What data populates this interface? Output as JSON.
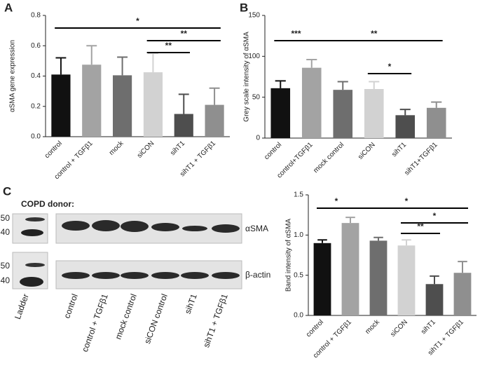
{
  "chart_data": [
    {
      "type": "bar",
      "panel": "A",
      "ylabel": "αSMA gene expression",
      "categories": [
        "control",
        "control + TGFβ1",
        "mock",
        "siCON",
        "sihT1",
        "sihT1 + TGFβ1"
      ],
      "values": [
        0.41,
        0.475,
        0.405,
        0.425,
        0.15,
        0.21
      ],
      "errors": [
        0.11,
        0.125,
        0.12,
        0.125,
        0.13,
        0.11
      ],
      "colors": [
        "#111111",
        "#a3a3a3",
        "#6e6e6e",
        "#d2d2d2",
        "#4e4e4e",
        "#8f8f8f"
      ],
      "ylim": [
        0,
        0.8
      ],
      "yticks": [
        {
          "value": 0,
          "label": "0.0"
        },
        0.2,
        0.4,
        0.6,
        0.8
      ],
      "annotations": [
        "*",
        "**",
        "**"
      ]
    },
    {
      "type": "bar",
      "panel": "B",
      "ylabel": "Grey scale intensity of αSMA",
      "categories": [
        "control",
        "control+TGFβ1",
        "mock control",
        "siCON",
        "sihT1",
        "sihT1+TGFβ1"
      ],
      "values": [
        61,
        86,
        59,
        60,
        28,
        37
      ],
      "errors": [
        9,
        10,
        10,
        9,
        7,
        7
      ],
      "colors": [
        "#111111",
        "#a3a3a3",
        "#6e6e6e",
        "#d2d2d2",
        "#4e4e4e",
        "#8f8f8f"
      ],
      "ylim": [
        0,
        150
      ],
      "yticks": [
        0,
        50,
        100,
        150
      ],
      "annotations": [
        "***",
        "**",
        "*"
      ]
    },
    {
      "type": "bar",
      "ylabel": "Band intensity of αSMA",
      "categories": [
        "control",
        "control + TGFβ1",
        "mock",
        "siCON",
        "sihT1",
        "sihT1 + TGFβ1"
      ],
      "values": [
        0.9,
        1.15,
        0.93,
        0.87,
        0.39,
        0.53
      ],
      "errors": [
        0.04,
        0.07,
        0.04,
        0.07,
        0.1,
        0.14
      ],
      "colors": [
        "#111111",
        "#a3a3a3",
        "#6e6e6e",
        "#d2d2d2",
        "#4e4e4e",
        "#8f8f8f"
      ],
      "ylim": [
        0,
        1.5
      ],
      "yticks": [
        {
          "value": 0,
          "label": "0.0"
        },
        0.5,
        {
          "value": 1,
          "label": "1.0"
        },
        1.5
      ],
      "annotations": [
        "*",
        "*",
        "*",
        "**"
      ]
    }
  ],
  "blot": {
    "panel": "C",
    "title": "COPD donor:",
    "markers_top": [
      "50",
      "40"
    ],
    "markers_bottom": [
      "50",
      "40"
    ],
    "rows": [
      "αSMA",
      "β-actin"
    ],
    "lanes": [
      "Ladder",
      "control",
      "control + TGFβ1",
      "mock control",
      "siCON control",
      "sihT1",
      "sihT1 + TGFβ1"
    ]
  }
}
